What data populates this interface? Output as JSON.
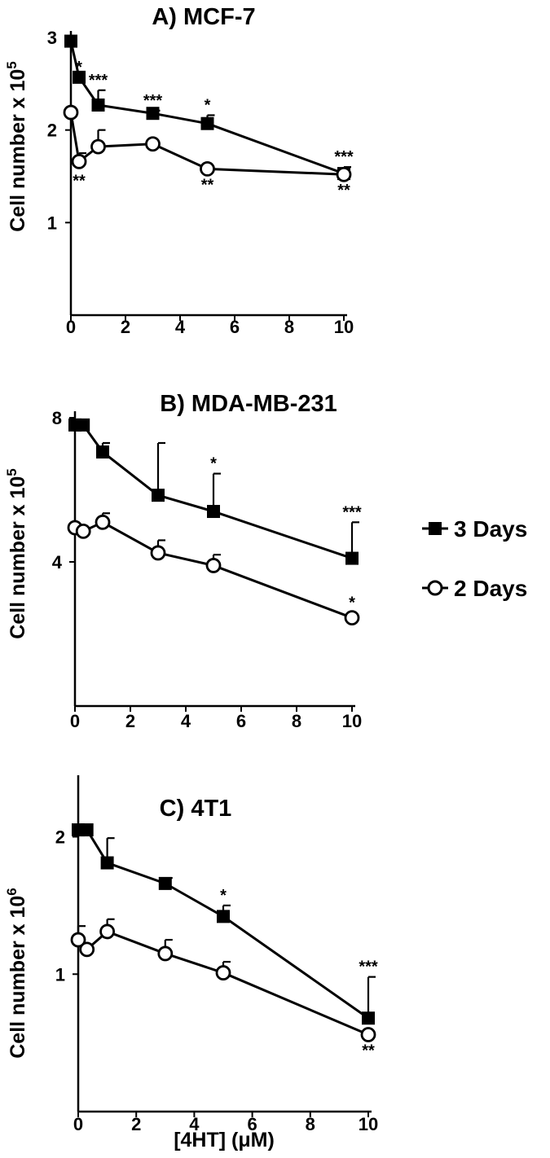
{
  "chart_data": [
    {
      "type": "line",
      "title": "A)  MCF-7",
      "ylabel": "Cell number x 10",
      "ylabel_exponent": "5",
      "xlim": [
        0,
        10
      ],
      "ylim": [
        0,
        3
      ],
      "xticks": [
        "0",
        "2",
        "4",
        "6",
        "8",
        "10"
      ],
      "yticks": [
        "1",
        "2",
        "3"
      ],
      "series": [
        {
          "name": "3 Days",
          "x": [
            0,
            0.3,
            1,
            3,
            5,
            10
          ],
          "y": [
            2.96,
            2.57,
            2.27,
            2.18,
            2.07,
            1.53
          ],
          "err": [
            0,
            0,
            0.16,
            0.03,
            0.09,
            0.07
          ],
          "sig": [
            "",
            "*",
            "***",
            "***",
            "*",
            "***"
          ]
        },
        {
          "name": "2 Days",
          "x": [
            0,
            0.3,
            1,
            3,
            5,
            10
          ],
          "y": [
            2.19,
            1.66,
            1.82,
            1.85,
            1.58,
            1.52
          ],
          "err": [
            0,
            0.09,
            0.18,
            0,
            0,
            0
          ],
          "sig": [
            "",
            "**",
            "",
            "",
            "**",
            "**"
          ]
        }
      ]
    },
    {
      "type": "line",
      "title": "B)  MDA-MB-231",
      "ylabel": "Cell number x 10",
      "ylabel_exponent": "5",
      "xlim": [
        0,
        10
      ],
      "ylim": [
        0,
        8
      ],
      "xticks": [
        "0",
        "2",
        "4",
        "6",
        "8",
        "10"
      ],
      "yticks": [
        "4",
        "8"
      ],
      "series": [
        {
          "name": "3 Days",
          "x": [
            0,
            0.3,
            1,
            3,
            5,
            10
          ],
          "y": [
            7.8,
            7.8,
            7.05,
            5.85,
            5.4,
            4.1
          ],
          "err": [
            0,
            0,
            0.25,
            1.45,
            1.05,
            1.0
          ],
          "sig": [
            "",
            "",
            "",
            "",
            "*",
            "***"
          ]
        },
        {
          "name": "2 Days",
          "x": [
            0,
            0.3,
            1,
            3,
            5,
            10
          ],
          "y": [
            4.95,
            4.85,
            5.1,
            4.25,
            3.9,
            2.45
          ],
          "err": [
            0,
            0,
            0.25,
            0.35,
            0.3,
            0
          ],
          "sig": [
            "",
            "",
            "",
            "",
            "",
            "*"
          ]
        }
      ]
    },
    {
      "type": "line",
      "title": "C)  4T1",
      "ylabel": "Cell number x 10",
      "ylabel_exponent": "6",
      "xlabel": "[4HT] (μM)",
      "xlim": [
        0,
        10
      ],
      "ylim": [
        0,
        2.4
      ],
      "xticks": [
        "0",
        "2",
        "4",
        "6",
        "8",
        "10"
      ],
      "yticks": [
        "1",
        "2"
      ],
      "series": [
        {
          "name": "3 Days",
          "x": [
            0,
            0.3,
            1,
            3,
            5,
            10
          ],
          "y": [
            2.05,
            2.05,
            1.81,
            1.66,
            1.42,
            0.68
          ],
          "err": [
            0,
            0,
            0.18,
            0.04,
            0.08,
            0.3
          ],
          "sig": [
            "",
            "",
            "",
            "",
            "*",
            "***"
          ]
        },
        {
          "name": "2 Days",
          "x": [
            0,
            0.3,
            1,
            3,
            5,
            10
          ],
          "y": [
            1.25,
            1.18,
            1.31,
            1.15,
            1.01,
            0.56
          ],
          "err": [
            0.1,
            0,
            0.09,
            0.1,
            0.08,
            0
          ],
          "sig": [
            "",
            "",
            "",
            "",
            "",
            "**"
          ]
        }
      ]
    }
  ],
  "legend": {
    "position": "right",
    "items": [
      {
        "label": "3 Days",
        "marker": "filled-square"
      },
      {
        "label": "2 Days",
        "marker": "open-circle"
      }
    ]
  }
}
